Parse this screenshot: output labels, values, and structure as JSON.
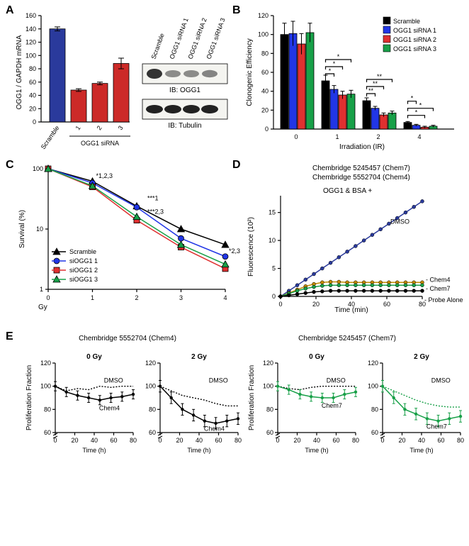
{
  "panelLabels": {
    "A": "A",
    "B": "B",
    "C": "C",
    "D": "D",
    "E": "E"
  },
  "A": {
    "ylabel": "OGG1 / GAPDH mRNA",
    "ylim": [
      0,
      160
    ],
    "ytick_step": 20,
    "categories": [
      "Scramble",
      "1",
      "2",
      "3"
    ],
    "group_label": "OGG1 siRNA",
    "values": [
      140,
      48,
      58,
      88
    ],
    "errors": [
      3,
      2,
      2,
      8
    ],
    "colors": [
      "#2a3a9c",
      "#cc2a28",
      "#cc2a28",
      "#cc2a28"
    ],
    "blot": {
      "lanes": [
        "Scramble",
        "OGG1 siRNA 1",
        "OGG1 siRNA 2",
        "OGG1 siRNA 3"
      ],
      "ib1": "IB: OGG1",
      "ib2": "IB: Tubulin",
      "intensity_ogg1": [
        1.0,
        0.35,
        0.35,
        0.4
      ],
      "intensity_tub": [
        1.0,
        1.0,
        1.0,
        1.0
      ]
    }
  },
  "B": {
    "ylabel": "Clonogenic Efficiency",
    "xlabel": "Irradiation (IR)",
    "ylim": [
      0,
      120
    ],
    "ytick_step": 20,
    "xgroups": [
      "0",
      "1",
      "2",
      "4"
    ],
    "series": [
      {
        "name": "Scramble",
        "color": "#000000",
        "values": [
          100,
          51,
          30,
          7
        ],
        "err": [
          12,
          6,
          3,
          1
        ]
      },
      {
        "name": "OGG1 siRNA 1",
        "color": "#2136e6",
        "values": [
          101,
          42,
          22,
          4
        ],
        "err": [
          13,
          4,
          2,
          1
        ]
      },
      {
        "name": "OGG1 siRNA 2",
        "color": "#e03030",
        "values": [
          90,
          36,
          15,
          2
        ],
        "err": [
          11,
          4,
          2,
          1
        ]
      },
      {
        "name": "OGG1 siRNA 3",
        "color": "#18a048",
        "values": [
          102,
          37,
          17,
          3
        ],
        "err": [
          10,
          4,
          2,
          1
        ]
      }
    ],
    "sig": [
      {
        "x": 1,
        "pairs": [
          [
            0,
            1,
            "*"
          ],
          [
            0,
            2,
            "*"
          ],
          [
            0,
            3,
            "*"
          ]
        ]
      },
      {
        "x": 2,
        "pairs": [
          [
            0,
            1,
            "**"
          ],
          [
            0,
            2,
            "**"
          ],
          [
            0,
            3,
            "**"
          ]
        ]
      },
      {
        "x": 3,
        "pairs": [
          [
            0,
            2,
            "*"
          ],
          [
            0,
            3,
            "*"
          ],
          [
            0,
            1,
            "*"
          ]
        ]
      }
    ]
  },
  "C": {
    "ylabel": "Survival (%)",
    "xlabel": "Gy",
    "xticks": [
      0,
      1,
      2,
      3,
      4
    ],
    "yticks": [
      1,
      10,
      100
    ],
    "series": [
      {
        "name": "Scramble",
        "color": "#000000",
        "marker": "triangle",
        "y": [
          100,
          62,
          24,
          10,
          5.5
        ]
      },
      {
        "name": "siOGG1 1",
        "color": "#2136e6",
        "marker": "circle",
        "y": [
          100,
          58,
          23,
          7,
          3.5
        ]
      },
      {
        "name": "siOGG1 2",
        "color": "#e03030",
        "marker": "square",
        "y": [
          100,
          50,
          14,
          5,
          2.2
        ]
      },
      {
        "name": "siOGG1 3",
        "color": "#18a048",
        "marker": "triangle",
        "y": [
          100,
          52,
          16,
          5.5,
          2.6
        ]
      }
    ],
    "annot": [
      "*1,2,3",
      "***1",
      "***2,3",
      "*2,3"
    ]
  },
  "D": {
    "titles": [
      "Chembridge 5245457 (Chem7)",
      "Chembridge 5552704 (Chem4)"
    ],
    "inside": "OGG1 & BSA +",
    "ylabel": "Fluorescence (10²)",
    "xlabel": "Time (min)",
    "xticks": [
      0,
      20,
      40,
      60,
      80
    ],
    "yticks": [
      0,
      5,
      10,
      15
    ],
    "series": [
      {
        "name": "DMSO",
        "color": "#2a3a9c",
        "y": [
          0,
          1,
          2,
          3,
          4,
          5,
          6,
          7,
          8,
          9,
          10,
          11,
          12,
          13,
          14,
          15,
          16,
          17
        ]
      },
      {
        "name": "Chem4",
        "color": "#c48a00",
        "y": [
          0,
          0.6,
          1.2,
          1.8,
          2.2,
          2.5,
          2.6,
          2.6,
          2.5,
          2.5,
          2.5,
          2.5,
          2.5,
          2.5,
          2.5,
          2.5,
          2.5,
          2.5
        ]
      },
      {
        "name": "Chem7",
        "color": "#18a048",
        "y": [
          0,
          0.5,
          1.0,
          1.4,
          1.7,
          1.9,
          2.0,
          2.0,
          2.0,
          2.0,
          2.0,
          2.0,
          2.0,
          2.0,
          2.0,
          2.0,
          2.0,
          2.0
        ]
      },
      {
        "name": "Probe Alone",
        "color": "#000000",
        "y": [
          0,
          0.2,
          0.4,
          0.6,
          0.8,
          0.9,
          1.0,
          1.0,
          1.0,
          1.0,
          1.0,
          1.0,
          1.0,
          1.0,
          1.0,
          1.0,
          1.0,
          1.0
        ]
      }
    ]
  },
  "E": {
    "left_title": "Chembridge 5552704 (Chem4)",
    "right_title": "Chembridge 5245457 (Chem7)",
    "ylabel": "Proliferation Fraction",
    "xlabel": "Time (h)",
    "xticks": [
      0,
      20,
      40,
      60,
      80
    ],
    "yticks": [
      60,
      80,
      100,
      120
    ],
    "subplots": [
      {
        "header": "0 Gy",
        "drug": "Chem4",
        "dmso": [
          100,
          96,
          98,
          97,
          100,
          99,
          100,
          100
        ],
        "drug_y": [
          100,
          95,
          92,
          90,
          88,
          90,
          91,
          93
        ],
        "derr": [
          4,
          4,
          4,
          4,
          4,
          4,
          4,
          4
        ]
      },
      {
        "header": "2 Gy",
        "drug": "Chem4",
        "dmso": [
          100,
          96,
          92,
          90,
          88,
          85,
          83,
          83
        ],
        "drug_y": [
          100,
          90,
          80,
          75,
          70,
          68,
          70,
          72
        ],
        "derr": [
          5,
          5,
          5,
          5,
          5,
          5,
          5,
          5
        ]
      },
      {
        "header": "0 Gy",
        "drug": "Chem7",
        "dmso": [
          100,
          98,
          97,
          99,
          100,
          100,
          100,
          100
        ],
        "drug_y": [
          100,
          97,
          93,
          91,
          90,
          90,
          93,
          95
        ],
        "derr": [
          4,
          4,
          4,
          4,
          4,
          4,
          4,
          4
        ]
      },
      {
        "header": "2 Gy",
        "drug": "Chem7",
        "dmso": [
          100,
          96,
          92,
          88,
          85,
          83,
          82,
          82
        ],
        "drug_y": [
          100,
          90,
          80,
          76,
          72,
          70,
          72,
          74
        ],
        "derr": [
          5,
          5,
          5,
          5,
          5,
          5,
          5,
          5
        ]
      }
    ]
  },
  "style": {
    "axis_fontsize": 11,
    "tick_fontsize": 9
  }
}
